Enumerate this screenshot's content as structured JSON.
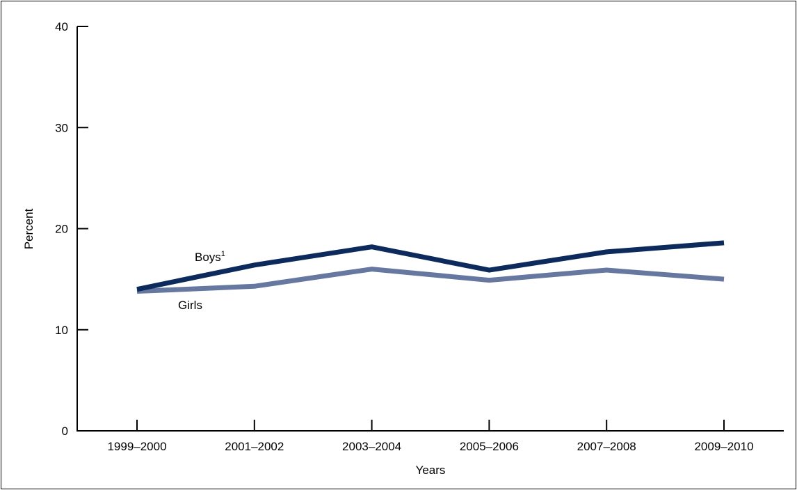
{
  "chart_data": {
    "type": "line",
    "title": "",
    "xlabel": "Years",
    "ylabel": "Percent",
    "ylim": [
      0,
      40
    ],
    "yticks": [
      "0",
      "10",
      "20",
      "30",
      "40"
    ],
    "categories": [
      "1999–2000",
      "2001–2002",
      "2003–2004",
      "2005–2006",
      "2007–2008",
      "2009–2010"
    ],
    "grid": false,
    "series": [
      {
        "name": "Boys",
        "footnote_marker": "1",
        "color": "#0d2a5c",
        "values": [
          14.0,
          16.4,
          18.2,
          15.9,
          17.7,
          18.6
        ]
      },
      {
        "name": "Girls",
        "color": "#6677a0",
        "values": [
          13.8,
          14.3,
          16.0,
          14.9,
          15.9,
          15.0
        ]
      }
    ]
  }
}
